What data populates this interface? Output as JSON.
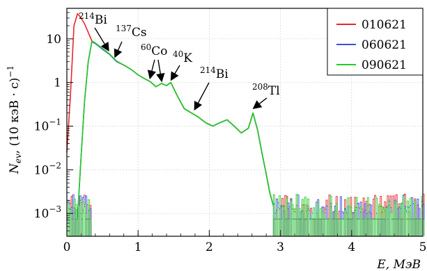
{
  "chart_data": {
    "type": "line",
    "xlabel": "E, МэВ",
    "ylabel": "N_ev, (10 кэВ·с)^-1",
    "ylabel_parts": {
      "main": "N",
      "sub": "ev",
      "rest": ", (10 кэВ · с)",
      "sup": "−1"
    },
    "x_scale": "linear",
    "y_scale": "log",
    "xlim": [
      0,
      5
    ],
    "ylim": [
      0.0003,
      50
    ],
    "x_ticks": [
      "0",
      "1",
      "2",
      "3",
      "4",
      "5"
    ],
    "y_ticks": [
      {
        "value": 0.001,
        "base": "10",
        "exp": "−3"
      },
      {
        "value": 0.01,
        "base": "10",
        "exp": "−2"
      },
      {
        "value": 0.1,
        "base": "10",
        "exp": "−1"
      },
      {
        "value": 1,
        "label": "1"
      },
      {
        "value": 10,
        "label": "10"
      }
    ],
    "grid": true,
    "legend_position": "top-right",
    "series": [
      {
        "name": "010621",
        "color": "#e8262a",
        "x": [
          0.0,
          0.05,
          0.1,
          0.15,
          0.2,
          0.25,
          0.3,
          0.35,
          0.4,
          0.5,
          0.6,
          0.7,
          0.8,
          0.9,
          1.0,
          1.1,
          1.17,
          1.25,
          1.33,
          1.4,
          1.46,
          1.55,
          1.65,
          1.75,
          1.85,
          1.95,
          2.05,
          2.15,
          2.25,
          2.35,
          2.45,
          2.55,
          2.614,
          2.68,
          2.75,
          2.8,
          2.85,
          2.9
        ],
        "y": [
          0.025,
          0.5,
          20,
          38,
          30,
          22,
          14,
          9,
          8,
          6,
          4.5,
          3,
          2.5,
          2,
          1.5,
          1.2,
          1.05,
          0.8,
          0.95,
          0.85,
          1.0,
          0.5,
          0.25,
          0.2,
          0.16,
          0.12,
          0.1,
          0.12,
          0.14,
          0.1,
          0.07,
          0.09,
          0.2,
          0.08,
          0.02,
          0.008,
          0.003,
          0.0015
        ]
      },
      {
        "name": "060621",
        "color": "#3a4de0",
        "x": [
          0.15,
          0.2,
          0.25,
          0.3,
          0.35,
          0.4,
          0.5,
          0.6,
          0.7,
          0.8,
          0.9,
          1.0,
          1.1,
          1.17,
          1.25,
          1.33,
          1.4,
          1.46,
          1.55,
          1.65,
          1.75,
          1.85,
          1.95,
          2.05,
          2.15,
          2.25,
          2.35,
          2.45,
          2.55,
          2.614,
          2.68,
          2.75,
          2.8,
          2.85,
          2.9
        ],
        "y": [
          0.0008,
          0.02,
          0.4,
          3,
          8.5,
          7.8,
          5.8,
          4.4,
          3,
          2.5,
          2,
          1.5,
          1.2,
          1.05,
          0.8,
          0.95,
          0.85,
          1.0,
          0.5,
          0.25,
          0.2,
          0.16,
          0.12,
          0.1,
          0.12,
          0.14,
          0.1,
          0.07,
          0.09,
          0.2,
          0.08,
          0.02,
          0.008,
          0.003,
          0.0015
        ]
      },
      {
        "name": "090621",
        "color": "#22cc22",
        "x": [
          0.15,
          0.2,
          0.25,
          0.3,
          0.35,
          0.4,
          0.5,
          0.6,
          0.7,
          0.8,
          0.9,
          1.0,
          1.1,
          1.17,
          1.25,
          1.33,
          1.4,
          1.46,
          1.55,
          1.65,
          1.75,
          1.85,
          1.95,
          2.05,
          2.15,
          2.25,
          2.35,
          2.45,
          2.55,
          2.614,
          2.68,
          2.75,
          2.8,
          2.85,
          2.9
        ],
        "y": [
          0.0008,
          0.02,
          0.4,
          3,
          8.8,
          8,
          6,
          4.5,
          3.1,
          2.5,
          2,
          1.5,
          1.2,
          1.05,
          0.8,
          0.95,
          0.85,
          1.0,
          0.5,
          0.25,
          0.2,
          0.16,
          0.12,
          0.1,
          0.12,
          0.14,
          0.1,
          0.07,
          0.09,
          0.2,
          0.08,
          0.02,
          0.008,
          0.003,
          0.0015
        ]
      }
    ],
    "annotations": [
      {
        "pre": "",
        "sup": "214",
        "text": "Bi",
        "at": [
          0.58,
          4.5
        ]
      },
      {
        "pre": "",
        "sup": "137",
        "text": "Cs",
        "at": [
          0.68,
          3.2
        ]
      },
      {
        "pre": "",
        "sup": "60",
        "text": "Co",
        "at": [
          1.17,
          1.05
        ]
      },
      {
        "pre": "",
        "sup": "",
        "text": "",
        "at": [
          1.33,
          0.9
        ]
      },
      {
        "pre": "",
        "sup": "40",
        "text": "K",
        "at": [
          1.47,
          0.95
        ]
      },
      {
        "pre": "",
        "sup": "214",
        "text": "Bi",
        "at": [
          1.8,
          0.2
        ]
      },
      {
        "pre": "",
        "sup": "208",
        "text": "Tl",
        "at": [
          2.63,
          0.21
        ]
      }
    ]
  }
}
